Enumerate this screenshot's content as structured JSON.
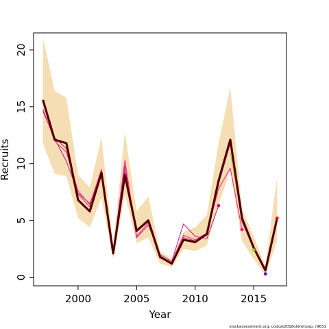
{
  "chart_data": {
    "type": "line",
    "title": "",
    "xlabel": "Year",
    "ylabel": "Recruits",
    "xlim": [
      1996.2,
      2017.8
    ],
    "ylim": [
      -0.75,
      21.5
    ],
    "x_ticks": [
      2000,
      2005,
      2010,
      2015
    ],
    "y_ticks": [
      0,
      5,
      10,
      15,
      20
    ],
    "grid": false,
    "legend": "none",
    "colors": {
      "band": "#f5deb3",
      "main_line": "#3a0000",
      "main_line_accent": "#8b0000"
    },
    "x": [
      1997,
      1998,
      1999,
      2000,
      2001,
      2002,
      2003,
      2004,
      2005,
      2006,
      2007,
      2008,
      2009,
      2010,
      2011,
      2012,
      2013,
      2014,
      2015,
      2016,
      2017
    ],
    "confidence_band": {
      "lower": [
        11.8,
        9.1,
        8.9,
        5.2,
        4.4,
        7.0,
        1.6,
        7.3,
        3.0,
        3.5,
        1.2,
        0.9,
        2.5,
        2.3,
        2.8,
        6.4,
        9.4,
        3.2,
        1.6,
        0.2,
        3.2
      ],
      "upper": [
        21.1,
        16.4,
        15.8,
        9.0,
        7.9,
        12.3,
        2.8,
        12.8,
        5.8,
        7.1,
        2.3,
        1.6,
        4.0,
        4.4,
        5.5,
        11.8,
        16.7,
        6.0,
        3.6,
        1.0,
        8.9
      ]
    },
    "series": [
      {
        "color": "#3a0000",
        "x": [
          1997,
          1998,
          1999,
          2000,
          2001,
          2002,
          2003,
          2004,
          2005,
          2006,
          2007,
          2008,
          2009,
          2010,
          2011,
          2012,
          2013,
          2014,
          2015,
          2016,
          2017
        ],
        "values": [
          15.6,
          12.1,
          11.8,
          6.8,
          5.8,
          9.2,
          2.1,
          9.0,
          4.1,
          5.0,
          1.8,
          1.2,
          3.3,
          3.1,
          3.8,
          8.5,
          12.1,
          5.2,
          2.6,
          0.6,
          5.2
        ]
      },
      {
        "color": "#b03060",
        "x": [
          1997,
          1998,
          1999,
          2000,
          2001,
          2002,
          2003,
          2004,
          2005,
          2006,
          2007,
          2008,
          2009,
          2010,
          2011,
          2012,
          2013,
          2014,
          2015,
          2016
        ],
        "values": [
          15.4,
          12.3,
          11.3,
          7.3,
          6.2,
          9.3,
          2.2,
          9.3,
          4.0,
          4.9,
          1.7,
          1.2,
          3.5,
          3.2,
          3.9,
          8.2,
          11.8,
          4.9,
          2.5,
          0.55
        ]
      },
      {
        "color": "#ff1493",
        "x": [
          1997,
          1998,
          1999,
          2000,
          2001,
          2002,
          2003,
          2004,
          2005,
          2006,
          2007,
          2008,
          2009,
          2010,
          2011,
          2012,
          2013,
          2014
        ],
        "values": [
          14.8,
          12.0,
          11.0,
          7.6,
          6.4,
          9.5,
          2.3,
          10.3,
          3.6,
          4.8,
          1.8,
          1.3,
          3.7,
          3.3,
          3.9,
          7.8,
          9.6,
          4.2
        ]
      },
      {
        "color": "#c71585",
        "x": [
          1997,
          1998,
          1999,
          2000,
          2001,
          2002,
          2003,
          2004,
          2005,
          2006,
          2007,
          2008,
          2009,
          2010,
          2011,
          2012
        ],
        "values": [
          14.6,
          12.2,
          10.2,
          7.4,
          6.5,
          9.1,
          2.2,
          9.8,
          3.5,
          4.6,
          2.0,
          1.4,
          4.7,
          3.6,
          3.4,
          6.3
        ]
      },
      {
        "color": "#9acd32",
        "x": [
          2013,
          2014,
          2015
        ],
        "values": [
          11.0,
          5.0,
          2.4
        ]
      },
      {
        "color": "#ff0000",
        "x": [
          2016,
          2017
        ],
        "values": [
          0.7,
          5.2
        ]
      }
    ],
    "endpoints": [
      {
        "x": 2012,
        "y": 6.3,
        "color": "#c71585"
      },
      {
        "x": 2014,
        "y": 4.2,
        "color": "#ff1493"
      },
      {
        "x": 2015,
        "y": 2.4,
        "color": "#9acd32"
      },
      {
        "x": 2016,
        "y": 0.3,
        "color": "#6a0dad"
      },
      {
        "x": 2017,
        "y": 5.2,
        "color": "#ff0000"
      }
    ]
  },
  "credit": "stockassessment.org, codcat2018oldretrosp, r9631"
}
